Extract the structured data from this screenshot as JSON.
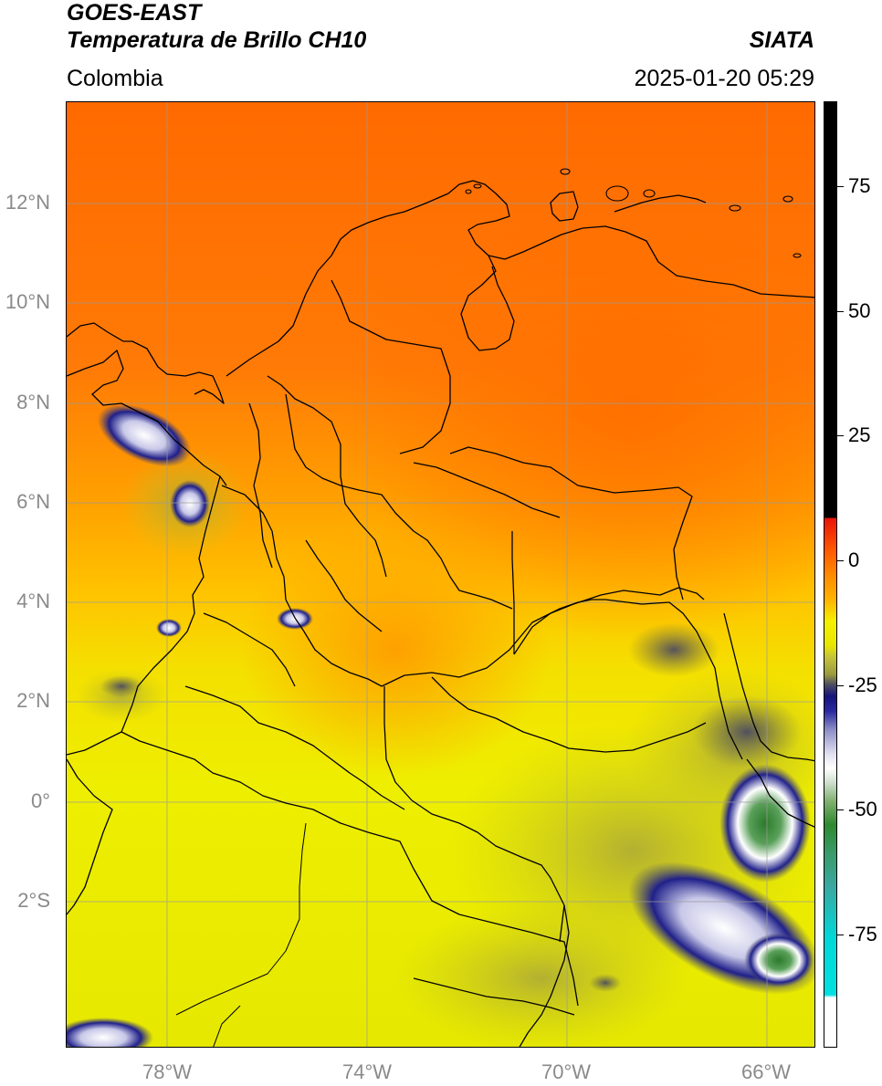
{
  "header": {
    "satellite": "GOES-EAST",
    "product": "Temperatura de Brillo CH10",
    "agency": "SIATA",
    "region": "Colombia",
    "datetime": "2025-01-20 05:29"
  },
  "map": {
    "latitude_labels": [
      "12°N",
      "10°N",
      "8°N",
      "6°N",
      "4°N",
      "2°N",
      "0°",
      "2°S"
    ],
    "longitude_labels": [
      "78°W",
      "74°W",
      "70°W",
      "66°W"
    ],
    "extent": {
      "lon_min": -80.0,
      "lon_max": -65.0,
      "lat_min": -4.9,
      "lat_max": 14.0
    }
  },
  "colorbar": {
    "tick_labels": [
      "75",
      "50",
      "25",
      "0",
      "-25",
      "-50",
      "-75"
    ],
    "range": [
      -100,
      90
    ],
    "colors": {
      "warm": "#000000",
      "red": "#e8120a",
      "orange": "#ff7a00",
      "yellow": "#f5f000",
      "olive": "#a8a83a",
      "navy": "#14147a",
      "white": "#ffffff",
      "green": "#2f8a2f",
      "cyan": "#00d8d8"
    }
  }
}
